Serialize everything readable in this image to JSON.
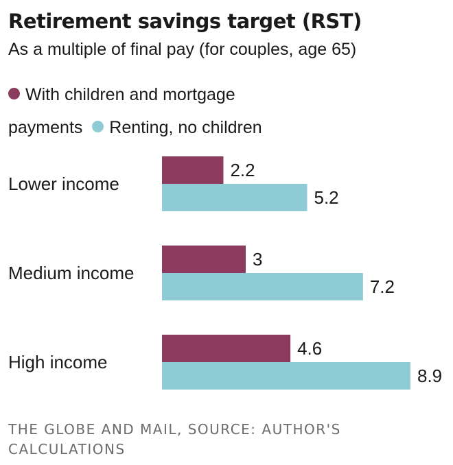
{
  "colors": {
    "series_1": "#8b3b5e",
    "series_2": "#8ecbd4",
    "text": "#1a1a1a",
    "source_text": "#6b6b6b"
  },
  "chart_data": {
    "type": "bar",
    "orientation": "horizontal",
    "title": "Retirement savings target (RST)",
    "subtitle": "As a multiple of final pay (for couples, age 65)",
    "categories": [
      "Lower income",
      "Medium income",
      "High income"
    ],
    "series": [
      {
        "name": "With children and mortgage payments",
        "values": [
          2.2,
          3,
          4.6
        ]
      },
      {
        "name": "Renting, no children",
        "values": [
          5.2,
          7.2,
          8.9
        ]
      }
    ],
    "value_labels": [
      [
        "2.2",
        "3",
        "4.6"
      ],
      [
        "5.2",
        "7.2",
        "8.9"
      ]
    ],
    "xlim": [
      0,
      8.9
    ],
    "grid": false,
    "legend_position": "top-left",
    "source": "THE GLOBE AND MAIL, SOURCE: AUTHOR'S CALCULATIONS"
  }
}
